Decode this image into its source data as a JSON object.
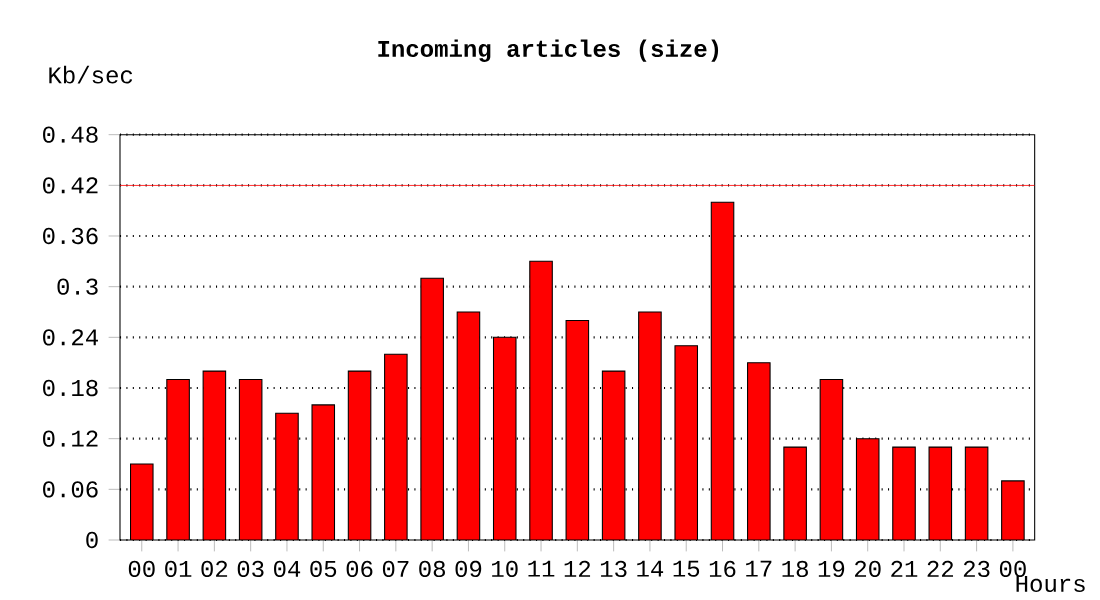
{
  "chart_data": {
    "type": "bar",
    "title": "Incoming articles (size)",
    "ylabel": "Kb/sec",
    "xlabel": "Hours",
    "categories": [
      "00",
      "01",
      "02",
      "03",
      "04",
      "05",
      "06",
      "07",
      "08",
      "09",
      "10",
      "11",
      "12",
      "13",
      "14",
      "15",
      "16",
      "17",
      "18",
      "19",
      "20",
      "21",
      "22",
      "23",
      "00"
    ],
    "values": [
      0.09,
      0.19,
      0.2,
      0.19,
      0.15,
      0.16,
      0.2,
      0.22,
      0.31,
      0.27,
      0.24,
      0.33,
      0.26,
      0.2,
      0.27,
      0.23,
      0.4,
      0.21,
      0.11,
      0.19,
      0.12,
      0.11,
      0.11,
      0.11,
      0.07
    ],
    "color": "#ff0000",
    "ylim": [
      0,
      0.48
    ],
    "yticks": [
      0,
      0.06,
      0.12,
      0.18,
      0.24,
      0.3,
      0.36,
      0.42,
      0.48
    ],
    "grid": "y",
    "ref_lines": [
      {
        "axis": "y",
        "value": 0.42,
        "color": "#ff0000",
        "line_style": "solid"
      }
    ]
  }
}
